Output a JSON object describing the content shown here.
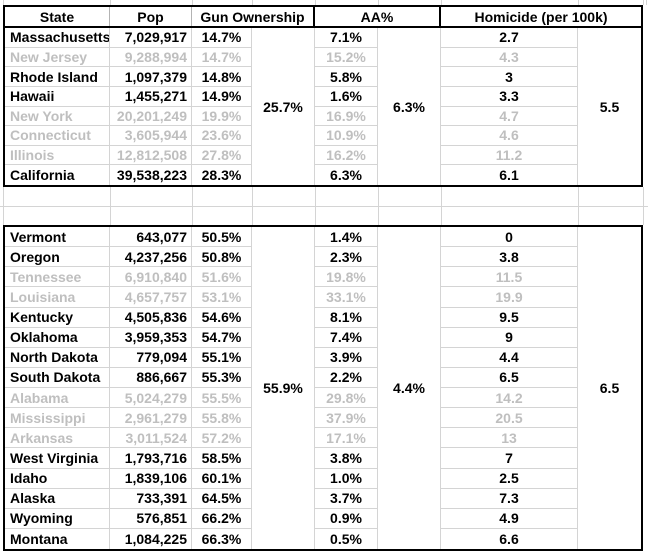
{
  "table": {
    "headers": {
      "state": "State",
      "pop": "Pop",
      "gun": "Gun Ownership",
      "aa": "AA%",
      "homicide": "Homicide (per 100k)"
    },
    "sections": [
      {
        "gun_avg": "25.7%",
        "aa_avg": "6.3%",
        "homicide_avg": "5.5",
        "rows": [
          {
            "state": "Massachusetts",
            "pop": "7,029,917",
            "gun": "14.7%",
            "aa": "7.1%",
            "homicide": "2.7",
            "dimmed": false
          },
          {
            "state": "New Jersey",
            "pop": "9,288,994",
            "gun": "14.7%",
            "aa": "15.2%",
            "homicide": "4.3",
            "dimmed": true
          },
          {
            "state": "Rhode Island",
            "pop": "1,097,379",
            "gun": "14.8%",
            "aa": "5.8%",
            "homicide": "3",
            "dimmed": false
          },
          {
            "state": "Hawaii",
            "pop": "1,455,271",
            "gun": "14.9%",
            "aa": "1.6%",
            "homicide": "3.3",
            "dimmed": false
          },
          {
            "state": "New York",
            "pop": "20,201,249",
            "gun": "19.9%",
            "aa": "16.9%",
            "homicide": "4.7",
            "dimmed": true
          },
          {
            "state": "Connecticut",
            "pop": "3,605,944",
            "gun": "23.6%",
            "aa": "10.9%",
            "homicide": "4.6",
            "dimmed": true
          },
          {
            "state": "Illinois",
            "pop": "12,812,508",
            "gun": "27.8%",
            "aa": "16.2%",
            "homicide": "11.2",
            "dimmed": true
          },
          {
            "state": "California",
            "pop": "39,538,223",
            "gun": "28.3%",
            "aa": "6.3%",
            "homicide": "6.1",
            "dimmed": false
          }
        ]
      },
      {
        "gun_avg": "55.9%",
        "aa_avg": "4.4%",
        "homicide_avg": "6.5",
        "rows": [
          {
            "state": "Vermont",
            "pop": "643,077",
            "gun": "50.5%",
            "aa": "1.4%",
            "homicide": "0",
            "dimmed": false
          },
          {
            "state": "Oregon",
            "pop": "4,237,256",
            "gun": "50.8%",
            "aa": "2.3%",
            "homicide": "3.8",
            "dimmed": false
          },
          {
            "state": "Tennessee",
            "pop": "6,910,840",
            "gun": "51.6%",
            "aa": "19.8%",
            "homicide": "11.5",
            "dimmed": true
          },
          {
            "state": "Louisiana",
            "pop": "4,657,757",
            "gun": "53.1%",
            "aa": "33.1%",
            "homicide": "19.9",
            "dimmed": true
          },
          {
            "state": "Kentucky",
            "pop": "4,505,836",
            "gun": "54.6%",
            "aa": "8.1%",
            "homicide": "9.5",
            "dimmed": false
          },
          {
            "state": "Oklahoma",
            "pop": "3,959,353",
            "gun": "54.7%",
            "aa": "7.4%",
            "homicide": "9",
            "dimmed": false
          },
          {
            "state": "North Dakota",
            "pop": "779,094",
            "gun": "55.1%",
            "aa": "3.9%",
            "homicide": "4.4",
            "dimmed": false
          },
          {
            "state": "South Dakota",
            "pop": "886,667",
            "gun": "55.3%",
            "aa": "2.2%",
            "homicide": "6.5",
            "dimmed": false
          },
          {
            "state": "Alabama",
            "pop": "5,024,279",
            "gun": "55.5%",
            "aa": "29.8%",
            "homicide": "14.2",
            "dimmed": true
          },
          {
            "state": "Mississippi",
            "pop": "2,961,279",
            "gun": "55.8%",
            "aa": "37.9%",
            "homicide": "20.5",
            "dimmed": true
          },
          {
            "state": "Arkansas",
            "pop": "3,011,524",
            "gun": "57.2%",
            "aa": "17.1%",
            "homicide": "13",
            "dimmed": true
          },
          {
            "state": "West Virginia",
            "pop": "1,793,716",
            "gun": "58.5%",
            "aa": "3.8%",
            "homicide": "7",
            "dimmed": false
          },
          {
            "state": "Idaho",
            "pop": "1,839,106",
            "gun": "60.1%",
            "aa": "1.0%",
            "homicide": "2.5",
            "dimmed": false
          },
          {
            "state": "Alaska",
            "pop": "733,391",
            "gun": "64.5%",
            "aa": "3.7%",
            "homicide": "7.3",
            "dimmed": false
          },
          {
            "state": "Wyoming",
            "pop": "576,851",
            "gun": "66.2%",
            "aa": "0.9%",
            "homicide": "4.9",
            "dimmed": false
          },
          {
            "state": "Montana",
            "pop": "1,084,225",
            "gun": "66.3%",
            "aa": "0.5%",
            "homicide": "6.6",
            "dimmed": false
          }
        ]
      }
    ]
  },
  "colors": {
    "text": "#000000",
    "dimmed_text": "#bfbfbf",
    "gridline": "#d4d4d4",
    "border": "#000000",
    "background": "#ffffff"
  }
}
